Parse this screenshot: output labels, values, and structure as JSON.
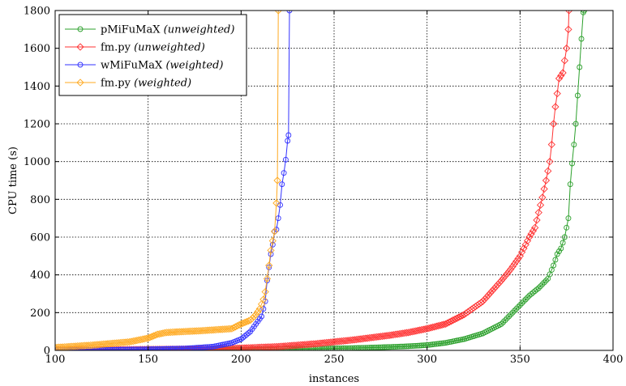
{
  "chart_data": {
    "type": "line",
    "xlabel": "instances",
    "ylabel": "CPU time (s)",
    "xlim": [
      100,
      400
    ],
    "ylim": [
      0,
      1800
    ],
    "x_ticks": [
      100,
      150,
      200,
      250,
      300,
      350,
      400
    ],
    "y_ticks": [
      0,
      200,
      400,
      600,
      800,
      1000,
      1200,
      1400,
      1600,
      1800
    ],
    "grid": true,
    "legend_position": "top-left",
    "series": [
      {
        "name": "pMiFuMaX",
        "qualifier": "(unweighted)",
        "color": "#2ca02c",
        "marker": "circle",
        "points": [
          [
            100,
            2
          ],
          [
            140,
            3
          ],
          [
            180,
            4
          ],
          [
            200,
            5
          ],
          [
            220,
            7
          ],
          [
            240,
            9
          ],
          [
            260,
            12
          ],
          [
            280,
            18
          ],
          [
            290,
            22
          ],
          [
            300,
            28
          ],
          [
            310,
            40
          ],
          [
            320,
            60
          ],
          [
            330,
            90
          ],
          [
            340,
            140
          ],
          [
            345,
            190
          ],
          [
            350,
            240
          ],
          [
            355,
            290
          ],
          [
            360,
            330
          ],
          [
            365,
            380
          ],
          [
            368,
            450
          ],
          [
            370,
            510
          ],
          [
            372,
            540
          ],
          [
            374,
            600
          ],
          [
            376,
            700
          ],
          [
            377,
            880
          ],
          [
            378,
            990
          ],
          [
            379,
            1090
          ],
          [
            380,
            1200
          ],
          [
            381,
            1350
          ],
          [
            382,
            1500
          ],
          [
            383,
            1650
          ],
          [
            384,
            1790
          ],
          [
            384.5,
            1800
          ]
        ]
      },
      {
        "name": "fm.py",
        "qualifier": "(unweighted)",
        "color": "#ff3333",
        "marker": "diamond",
        "points": [
          [
            100,
            2
          ],
          [
            140,
            4
          ],
          [
            180,
            8
          ],
          [
            200,
            12
          ],
          [
            220,
            20
          ],
          [
            240,
            35
          ],
          [
            260,
            55
          ],
          [
            280,
            80
          ],
          [
            290,
            95
          ],
          [
            300,
            115
          ],
          [
            310,
            140
          ],
          [
            320,
            190
          ],
          [
            330,
            260
          ],
          [
            340,
            370
          ],
          [
            345,
            430
          ],
          [
            350,
            500
          ],
          [
            355,
            600
          ],
          [
            358,
            650
          ],
          [
            360,
            730
          ],
          [
            362,
            810
          ],
          [
            364,
            900
          ],
          [
            366,
            1000
          ],
          [
            367,
            1090
          ],
          [
            368,
            1200
          ],
          [
            369,
            1290
          ],
          [
            370,
            1360
          ],
          [
            371,
            1440
          ],
          [
            373,
            1470
          ],
          [
            375,
            1600
          ],
          [
            376,
            1700
          ],
          [
            376.3,
            1800
          ]
        ]
      },
      {
        "name": "wMiFuMaX",
        "qualifier": "(weighted)",
        "color": "#3333ff",
        "marker": "circle",
        "points": [
          [
            100,
            1
          ],
          [
            130,
            3
          ],
          [
            150,
            6
          ],
          [
            170,
            10
          ],
          [
            185,
            20
          ],
          [
            195,
            40
          ],
          [
            200,
            60
          ],
          [
            205,
            100
          ],
          [
            208,
            140
          ],
          [
            211,
            180
          ],
          [
            213,
            260
          ],
          [
            214,
            370
          ],
          [
            215,
            440
          ],
          [
            216,
            510
          ],
          [
            217,
            560
          ],
          [
            218,
            630
          ],
          [
            219,
            640
          ],
          [
            220,
            700
          ],
          [
            221,
            770
          ],
          [
            222,
            880
          ],
          [
            223,
            940
          ],
          [
            224,
            1010
          ],
          [
            225,
            1110
          ],
          [
            225.5,
            1140
          ],
          [
            226,
            1800
          ]
        ]
      },
      {
        "name": "fm.py",
        "qualifier": "(weighted)",
        "color": "#ffaa22",
        "marker": "diamond",
        "points": [
          [
            100,
            15
          ],
          [
            120,
            28
          ],
          [
            140,
            45
          ],
          [
            150,
            65
          ],
          [
            155,
            85
          ],
          [
            160,
            95
          ],
          [
            180,
            105
          ],
          [
            195,
            115
          ],
          [
            200,
            140
          ],
          [
            205,
            160
          ],
          [
            208,
            190
          ],
          [
            210,
            220
          ],
          [
            212,
            270
          ],
          [
            213,
            310
          ],
          [
            214,
            380
          ],
          [
            215,
            450
          ],
          [
            216,
            530
          ],
          [
            217,
            580
          ],
          [
            218,
            630
          ],
          [
            219,
            780
          ],
          [
            219.5,
            900
          ],
          [
            220,
            1800
          ]
        ]
      }
    ]
  }
}
